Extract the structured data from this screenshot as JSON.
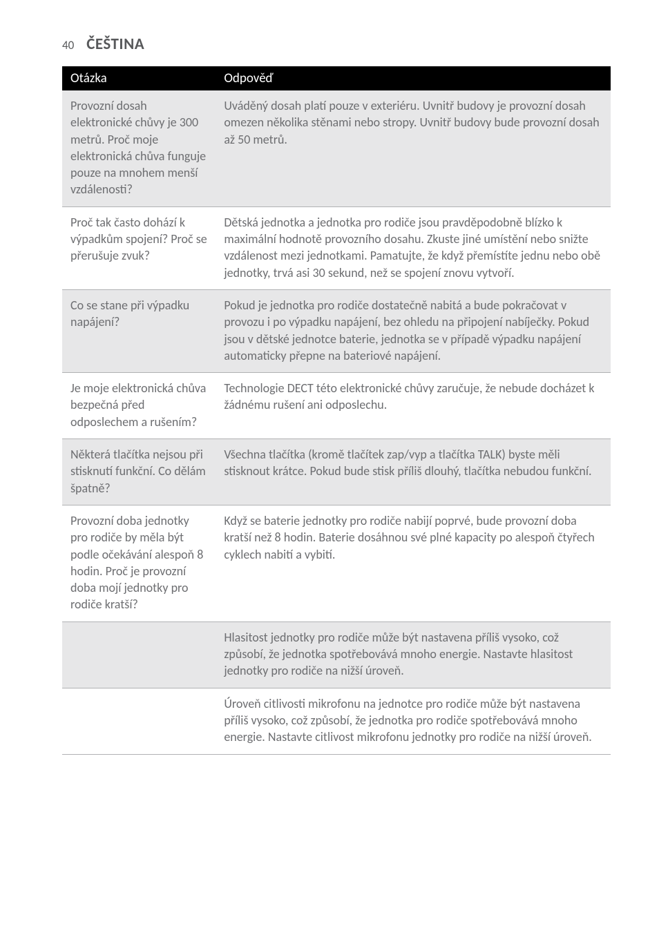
{
  "header": {
    "page_number": "40",
    "language_title": "ČEŠTINA"
  },
  "table": {
    "columns": [
      "Otázka",
      "Odpověď"
    ],
    "column_widths_percent": [
      28,
      72
    ],
    "header_bg": "#000000",
    "header_fg": "#ffffff",
    "header_fontsize": 19,
    "body_fontsize": 18,
    "body_color": "#6d6e71",
    "row_border_color": "#b0b1b3",
    "shade_bg": "#e7e7e8",
    "rows": [
      {
        "shaded": true,
        "q": "Provozní dosah elektronické chůvy je 300 metrů. Proč moje elektronická chůva funguje pouze na mnohem menší vzdálenosti?",
        "a": "Uváděný dosah platí pouze v exteriéru. Uvnitř budovy je provozní dosah omezen několika stěnami nebo stropy. Uvnitř budovy bude provozní dosah až 50 metrů."
      },
      {
        "shaded": false,
        "q": "Proč tak často dohází k výpadkům spojení? Proč se přerušuje zvuk?",
        "a": "Dětská jednotka a jednotka pro rodiče jsou pravděpodobně blízko k maximální hodnotě provozního dosahu. Zkuste jiné umístění nebo snižte vzdálenost mezi jednotkami. Pamatujte, že když přemístíte jednu nebo obě jednotky, trvá asi 30 sekund, než se spojení znovu vytvoří."
      },
      {
        "shaded": true,
        "q": "Co se stane při výpadku napájení?",
        "a": "Pokud je jednotka pro rodiče dostatečně nabitá a bude pokračovat v provozu i po výpadku napájení, bez ohledu na připojení nabíječky. Pokud jsou v dětské jednotce baterie, jednotka se v případě výpadku napájení automaticky přepne na bateriové napájení."
      },
      {
        "shaded": false,
        "q": "Je moje elektronická chůva bezpečná před odposlechem a rušením?",
        "a": "Technologie DECT této elektronické chůvy zaručuje, že nebude docházet k žádnému rušení ani odposlechu."
      },
      {
        "shaded": true,
        "q": "Některá tlačítka nejsou při stisknutí funkční. Co dělám špatně?",
        "a": "Všechna tlačítka (kromě tlačítek zap/vyp a tlačítka TALK) byste měli stisknout krátce. Pokud bude stisk příliš dlouhý, tlačítka nebudou funkční."
      },
      {
        "shaded": false,
        "q": "Provozní doba jednotky pro rodiče by měla být podle očekávání alespoň 8 hodin. Proč je provozní doba mojí jednotky pro rodiče kratší?",
        "a": "Když se baterie jednotky pro rodiče nabijí poprvé, bude provozní doba kratší než 8 hodin. Baterie dosáhnou své plné kapacity po alespoň čtyřech cyklech nabití a vybití."
      },
      {
        "shaded": true,
        "q": "",
        "a": "Hlasitost jednotky pro rodiče může být nastavena příliš vysoko, což způsobí, že jednotka spotřebovává mnoho energie. Nastavte hlasitost jednotky pro rodiče na nižší úroveň."
      },
      {
        "shaded": false,
        "q": "",
        "a": "Úroveň citlivosti mikrofonu na jednotce pro rodiče může být nastavena příliš vysoko, což způsobí, že jednotka pro rodiče spotřebovává mnoho energie. Nastavte citlivost mikrofonu jednotky pro rodiče na nižší úroveň."
      }
    ]
  }
}
